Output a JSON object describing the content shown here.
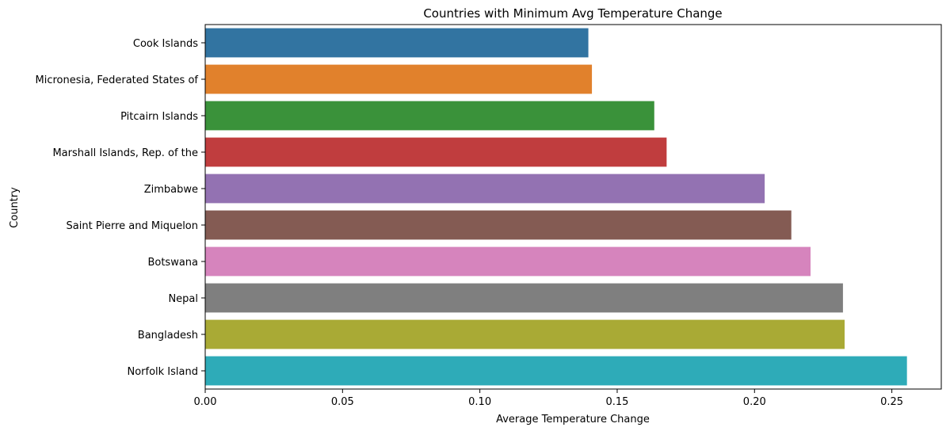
{
  "chart_data": {
    "type": "bar",
    "orientation": "horizontal",
    "title": "Countries with Minimum Avg Temperature Change",
    "xlabel": "Average Temperature Change",
    "ylabel": "Country",
    "xlim": [
      0,
      0.268
    ],
    "x_ticks": [
      0.0,
      0.05,
      0.1,
      0.15,
      0.2,
      0.25
    ],
    "x_tick_labels": [
      "0.00",
      "0.05",
      "0.10",
      "0.15",
      "0.20",
      "0.25"
    ],
    "grid": false,
    "categories": [
      "Cook Islands",
      "Micronesia, Federated States of",
      "Pitcairn Islands",
      "Marshall Islands, Rep. of the",
      "Zimbabwe",
      "Saint Pierre and Miquelon",
      "Botswana",
      "Nepal",
      "Bangladesh",
      "Norfolk Island"
    ],
    "values": [
      0.1395,
      0.1408,
      0.1635,
      0.168,
      0.2037,
      0.2134,
      0.2204,
      0.2322,
      0.2328,
      0.2555
    ],
    "colors": [
      "#3274a1",
      "#e1812c",
      "#3a923a",
      "#c03d3e",
      "#9372b2",
      "#845b53",
      "#d684bd",
      "#7f7f7f",
      "#a9aa35",
      "#2eabb8"
    ]
  }
}
